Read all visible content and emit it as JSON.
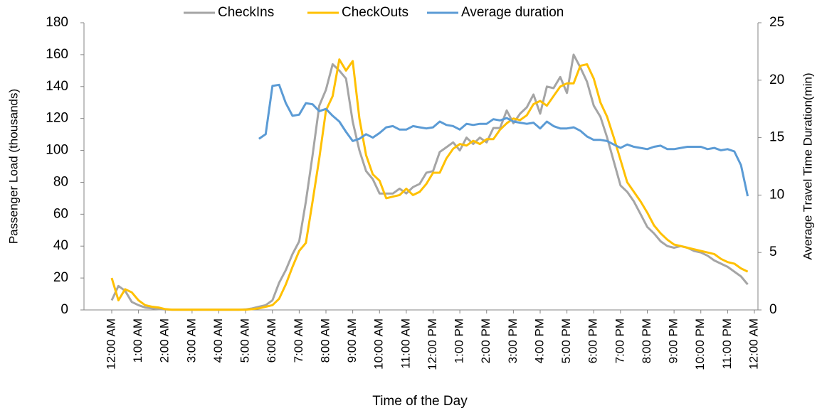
{
  "chart_data": {
    "type": "line",
    "xlabel": "Time of the Day",
    "ylabel": "Passenger Load (thousands)",
    "y2label": "Average Travel Time Duration(min)",
    "legend": "top",
    "categories": [
      "12:00 AM",
      null,
      null,
      null,
      "1:00 AM",
      null,
      null,
      null,
      "2:00 AM",
      null,
      null,
      null,
      "3:00 AM",
      null,
      null,
      null,
      "4:00 AM",
      null,
      null,
      null,
      "5:00 AM",
      null,
      null,
      null,
      "6:00 AM",
      null,
      null,
      null,
      "7:00 AM",
      null,
      null,
      null,
      "8:00 AM",
      null,
      null,
      null,
      "9:00 AM",
      null,
      null,
      null,
      "10:00 AM",
      null,
      null,
      null,
      "11:00 AM",
      null,
      null,
      null,
      "12:00 PM",
      null,
      null,
      null,
      "1:00 PM",
      null,
      null,
      null,
      "2:00 PM",
      null,
      null,
      null,
      "3:00 PM",
      null,
      null,
      null,
      "4:00 PM",
      null,
      null,
      null,
      "5:00 PM",
      null,
      null,
      null,
      "6:00 PM",
      null,
      null,
      null,
      "7:00 PM",
      null,
      null,
      null,
      "8:00 PM",
      null,
      null,
      null,
      "9:00 PM",
      null,
      null,
      null,
      "10:00 PM",
      null,
      null,
      null,
      "11:00 PM",
      null,
      null,
      null,
      "12:00 AM"
    ],
    "ylim": [
      0,
      180
    ],
    "yticks": [
      0,
      20,
      40,
      60,
      80,
      100,
      120,
      140,
      160,
      180
    ],
    "y2lim": [
      0,
      25
    ],
    "y2ticks": [
      0,
      5,
      10,
      15,
      20,
      25
    ],
    "series": [
      {
        "name": "CheckIns",
        "color": "#a5a5a5",
        "values": [
          6,
          15,
          12,
          5,
          3,
          1.5,
          1,
          0.5,
          0.3,
          0.1,
          0.1,
          0.1,
          0.1,
          0.1,
          0.1,
          0.1,
          0.1,
          0.1,
          0.1,
          0.1,
          0.3,
          1,
          2,
          3,
          6,
          17,
          25,
          35,
          43,
          68,
          97,
          128,
          138,
          154,
          150,
          145,
          118,
          100,
          87,
          82,
          73,
          73,
          73,
          76,
          73,
          77,
          79,
          86,
          87,
          99,
          102,
          105,
          100,
          108,
          104,
          108,
          105,
          114,
          114,
          125,
          117,
          123,
          127,
          135,
          123,
          140,
          139,
          146,
          136,
          160,
          152,
          143,
          128,
          121,
          108,
          93,
          78,
          74,
          68,
          60,
          52,
          48,
          43,
          40,
          39,
          40,
          39,
          37,
          36,
          34,
          31,
          29,
          27,
          24,
          21,
          16,
          null
        ]
      },
      {
        "name": "CheckOuts",
        "color": "#ffc000",
        "values": [
          20,
          6,
          13,
          11,
          6,
          3,
          2,
          1.5,
          0.5,
          0.2,
          0.2,
          0.2,
          0.2,
          0.2,
          0.2,
          0.2,
          0.2,
          0.2,
          0.2,
          0.2,
          0.2,
          0.5,
          1,
          2,
          3,
          7,
          16,
          27,
          37,
          42,
          68,
          95,
          125,
          134,
          157,
          150,
          156,
          120,
          97,
          85,
          81,
          70,
          71,
          72,
          76,
          72,
          74,
          79,
          86,
          86,
          95,
          101,
          104,
          103,
          106,
          104,
          107,
          107,
          113,
          117,
          120,
          119,
          122,
          129,
          131,
          128,
          134,
          140,
          142,
          142,
          153,
          154,
          145,
          130,
          121,
          108,
          94,
          80,
          74,
          68,
          61,
          53,
          48,
          44,
          41,
          40,
          39,
          38,
          37,
          36,
          35,
          32,
          30,
          29,
          26,
          24,
          null
        ]
      },
      {
        "name": "Average duration",
        "color": "#5b9bd5",
        "axis": "y2",
        "values": [
          null,
          null,
          null,
          null,
          null,
          null,
          null,
          null,
          null,
          null,
          null,
          null,
          null,
          null,
          null,
          null,
          null,
          null,
          null,
          null,
          null,
          null,
          14.9,
          15.3,
          19.5,
          19.6,
          18,
          16.9,
          17,
          18,
          17.9,
          17.3,
          17.5,
          16.9,
          16.4,
          15.5,
          14.7,
          14.9,
          15.3,
          15.0,
          15.4,
          15.9,
          16.0,
          15.7,
          15.7,
          16.0,
          15.9,
          15.8,
          15.9,
          16.4,
          16.1,
          16.0,
          15.7,
          16.2,
          16.1,
          16.2,
          16.2,
          16.6,
          16.5,
          16.7,
          16.4,
          16.3,
          16.2,
          16.3,
          15.8,
          16.4,
          16.0,
          15.8,
          15.8,
          15.9,
          15.6,
          15.1,
          14.8,
          14.8,
          14.7,
          14.4,
          14.1,
          14.4,
          14.2,
          14.1,
          14.0,
          14.2,
          14.3,
          14.0,
          14.0,
          14.1,
          14.2,
          14.2,
          14.2,
          14.0,
          14.1,
          13.9,
          14.0,
          13.8,
          12.6,
          9.9,
          null
        ]
      }
    ]
  }
}
